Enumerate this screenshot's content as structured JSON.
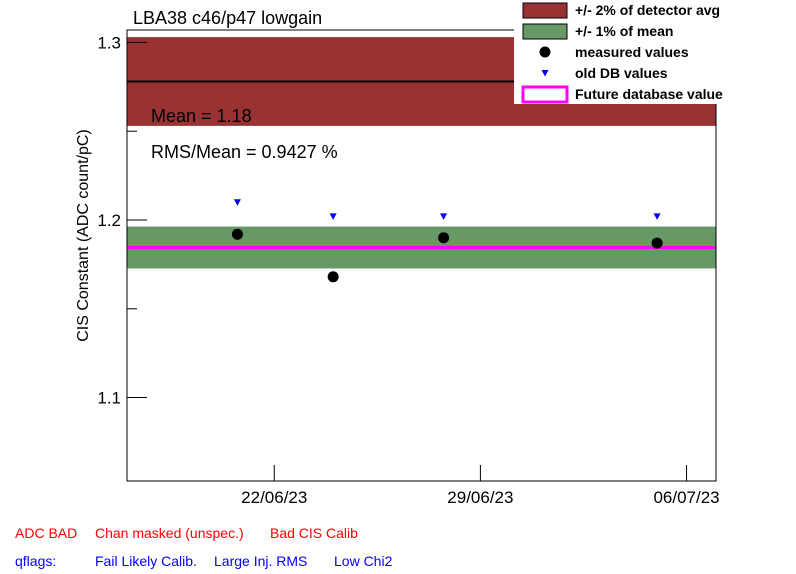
{
  "chart_data": {
    "type": "scatter",
    "title": "LBA38 c46/p47 lowgain",
    "ylabel": "CIS Constant (ADC count/pC)",
    "xlabel": "",
    "x_type": "date",
    "xlim": [
      "2023-06-17",
      "2023-07-07"
    ],
    "ylim": [
      1.053,
      1.307
    ],
    "x_ticks": [
      "22/06/23",
      "29/06/23",
      "06/07/23"
    ],
    "x_tick_dates": [
      "2023-06-22",
      "2023-06-29",
      "2023-07-06"
    ],
    "y_ticks": [
      "1.1",
      "1.2",
      "1.3"
    ],
    "y_tick_values": [
      1.1,
      1.2,
      1.3
    ],
    "detector_avg": 1.278,
    "detector_band": [
      1.253,
      1.303
    ],
    "mean_band": [
      1.1727,
      1.1963
    ],
    "future_db_value": 1.1845,
    "series": [
      {
        "name": "measured values",
        "points": [
          {
            "x": "2023-06-20T18:00",
            "y": 1.192
          },
          {
            "x": "2023-06-24T00:00",
            "y": 1.168
          },
          {
            "x": "2023-06-27T18:00",
            "y": 1.19
          },
          {
            "x": "2023-07-05T00:00",
            "y": 1.187
          }
        ]
      },
      {
        "name": "old DB values",
        "points": [
          {
            "x": "2023-06-20T18:00",
            "y": 1.21
          },
          {
            "x": "2023-06-24T00:00",
            "y": 1.202
          },
          {
            "x": "2023-06-27T18:00",
            "y": 1.202
          },
          {
            "x": "2023-07-05T00:00",
            "y": 1.202
          }
        ]
      }
    ],
    "legend": {
      "placement": "top-right",
      "entries": [
        {
          "label": "+/- 2% of detector avg",
          "color": "#993333",
          "kind": "box"
        },
        {
          "label": "+/- 1% of mean",
          "color": "#669966",
          "kind": "box"
        },
        {
          "label": "measured values",
          "color": "#000000",
          "kind": "circle"
        },
        {
          "label": "old DB values",
          "color": "#0000ff",
          "kind": "triangle"
        },
        {
          "label": "Future database value",
          "color": "#ff00ff",
          "kind": "line"
        }
      ]
    },
    "annotations": [
      "Mean = 1.18",
      "RMS/Mean = 0.9427 %"
    ],
    "colors": {
      "detector_band": "#993333",
      "detector_line": "#000000",
      "mean_band": "#669966",
      "future_line": "#ff00ff",
      "measured": "#000000",
      "old_db": "#0000ff"
    }
  },
  "flags": {
    "row1_label": "ADC BAD",
    "row1_items": [
      "Chan masked (unspec.)",
      "Bad CIS Calib"
    ],
    "row2_label": "qflags:",
    "row2_items": [
      "Fail Likely Calib.",
      "Large Inj. RMS",
      "Low Chi2"
    ],
    "colors": {
      "red": "#ff0000",
      "blue": "#0000ff"
    }
  }
}
